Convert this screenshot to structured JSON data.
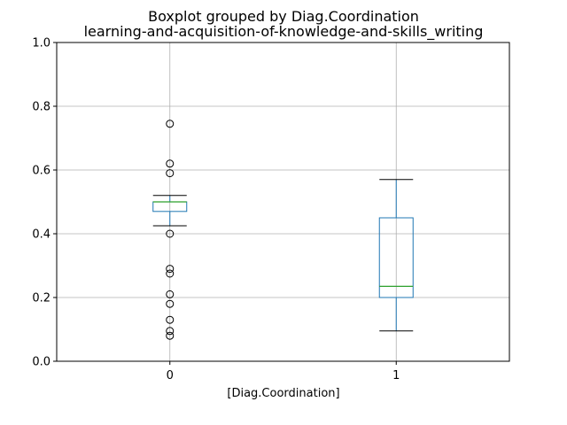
{
  "chart_data": {
    "type": "boxplot",
    "title": "Boxplot grouped by Diag.Coordination",
    "subtitle": "learning-and-acquisition-of-knowledge-and-skills_writing",
    "xlabel": "[Diag.Coordination]",
    "ylabel": "",
    "ylim": [
      0,
      1
    ],
    "yticks": [
      "0.0",
      "0.2",
      "0.4",
      "0.6",
      "0.8",
      "1.0"
    ],
    "grid": true,
    "categories": [
      "0",
      "1"
    ],
    "boxes": [
      {
        "category": "0",
        "whisker_low": 0.425,
        "q1": 0.47,
        "median": 0.5,
        "q3": 0.5,
        "whisker_high": 0.52,
        "outliers": [
          0.745,
          0.62,
          0.59,
          0.4,
          0.29,
          0.275,
          0.21,
          0.18,
          0.13,
          0.095,
          0.08
        ]
      },
      {
        "category": "1",
        "whisker_low": 0.095,
        "q1": 0.2,
        "median": 0.235,
        "q3": 0.45,
        "whisker_high": 0.57,
        "outliers": []
      }
    ],
    "colors": {
      "box": "#1f77b4",
      "median": "#2ca02c",
      "whisker": "#1f77b4",
      "cap": "#000000",
      "outlier": "#000000",
      "grid": "#b0b0b0"
    }
  }
}
